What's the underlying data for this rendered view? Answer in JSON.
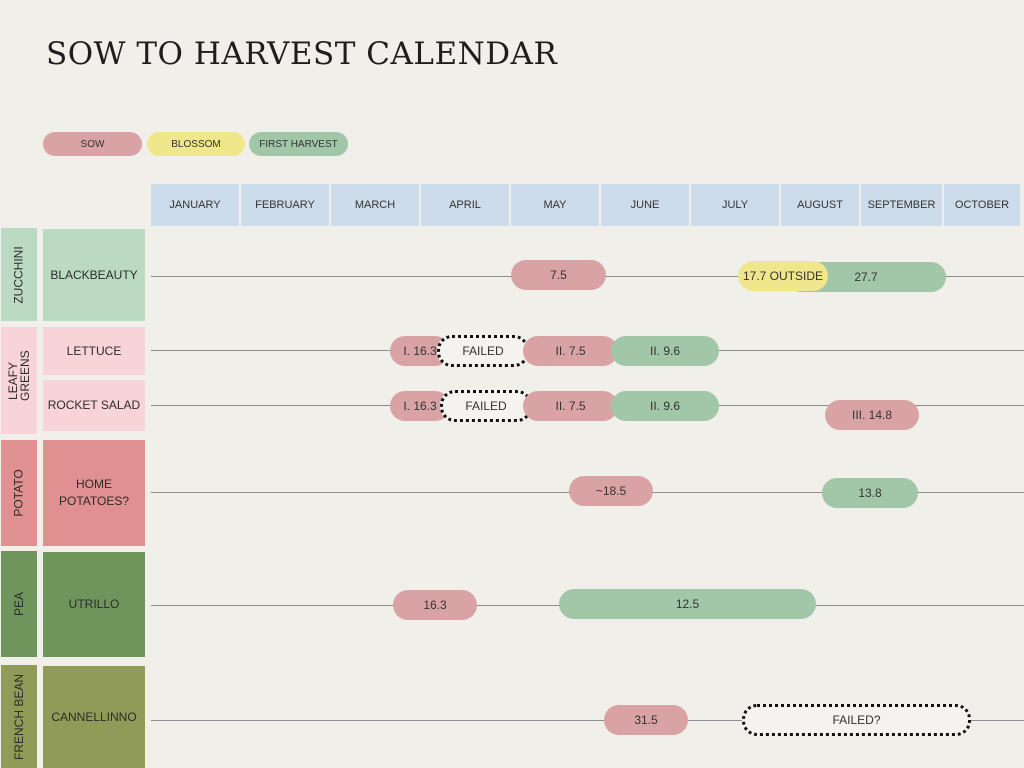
{
  "title": "SOW TO HARVEST CALENDAR",
  "legend": {
    "sow": "SOW",
    "blossom": "BLOSSOM",
    "harvest": "FIRST HARVEST"
  },
  "colors": {
    "sow": "#d9a3a5",
    "blossom": "#f0e68b",
    "harvest": "#a2c7a8",
    "month_header": "#cddcea"
  },
  "months": [
    "JANUARY",
    "FEBRUARY",
    "MARCH",
    "APRIL",
    "MAY",
    "JUNE",
    "JULY",
    "AUGUST",
    "SEPTEMBER",
    "OCTOBER"
  ],
  "groups": [
    {
      "category": "ZUCCHINI",
      "varieties": [
        {
          "name": "BLACKBEAUTY",
          "events": [
            {
              "type": "sow",
              "label": "7.5"
            },
            {
              "type": "harvest",
              "label": "27.7"
            },
            {
              "type": "blossom",
              "label": "17.7 OUTSIDE"
            }
          ]
        }
      ]
    },
    {
      "category": "LEAFY GREENS",
      "varieties": [
        {
          "name": "LETTUCE",
          "events": [
            {
              "type": "sow",
              "label": "I. 16.3"
            },
            {
              "type": "failed",
              "label": "FAILED"
            },
            {
              "type": "sow",
              "label": "II. 7.5"
            },
            {
              "type": "harvest",
              "label": "II. 9.6"
            }
          ]
        },
        {
          "name": "ROCKET SALAD",
          "events": [
            {
              "type": "sow",
              "label": "I. 16.3"
            },
            {
              "type": "failed",
              "label": "FAILED"
            },
            {
              "type": "sow",
              "label": "II. 7.5"
            },
            {
              "type": "harvest",
              "label": "II. 9.6"
            },
            {
              "type": "sow",
              "label": "III. 14.8"
            }
          ]
        }
      ]
    },
    {
      "category": "POTATO",
      "varieties": [
        {
          "name": "HOME POTATOES?",
          "events": [
            {
              "type": "sow",
              "label": "~18.5"
            },
            {
              "type": "harvest",
              "label": "13.8"
            }
          ]
        }
      ]
    },
    {
      "category": "PEA",
      "varieties": [
        {
          "name": "UTRILLO",
          "events": [
            {
              "type": "sow",
              "label": "16.3"
            },
            {
              "type": "harvest",
              "label": "12.5"
            }
          ]
        }
      ]
    },
    {
      "category": "FRENCH BEAN",
      "varieties": [
        {
          "name": "CANNELLINNO",
          "events": [
            {
              "type": "sow",
              "label": "31.5"
            },
            {
              "type": "failed",
              "label": "FAILED?"
            }
          ]
        }
      ]
    }
  ]
}
